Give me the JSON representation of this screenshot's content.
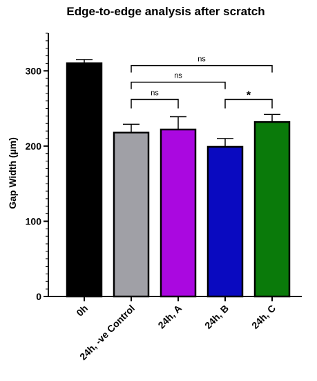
{
  "chart_data": {
    "type": "bar",
    "title": "Edge-to-edge analysis after scratch",
    "xlabel": "",
    "ylabel": "Gap Width (µm)",
    "ylim": [
      0,
      350
    ],
    "yticks": [
      0,
      100,
      200,
      300
    ],
    "categories": [
      "0h",
      "24h, -ve Control",
      "24h, A",
      "24h, B",
      "24h, C"
    ],
    "values": [
      310,
      218,
      222,
      199,
      232
    ],
    "errors": [
      5,
      11,
      17,
      11,
      10
    ],
    "colors": [
      "#000000",
      "#a0a0a6",
      "#aa08e0",
      "#0a0ac0",
      "#0a7a0a"
    ],
    "comparisons": [
      {
        "from": 1,
        "to": 4,
        "label": "ns"
      },
      {
        "from": 1,
        "to": 3,
        "label": "ns"
      },
      {
        "from": 1,
        "to": 2,
        "label": "ns"
      },
      {
        "from": 3,
        "to": 4,
        "label": "*"
      }
    ],
    "grid": false,
    "legend": "none"
  }
}
